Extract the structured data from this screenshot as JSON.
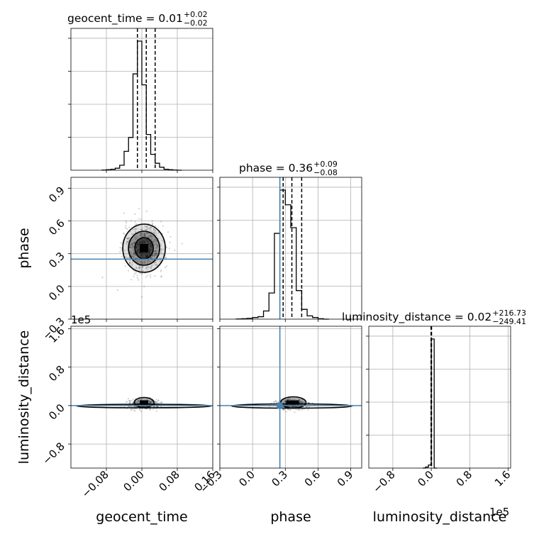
{
  "chart_data": {
    "type": "corner",
    "parameters": [
      "geocent_time",
      "phase",
      "luminosity_distance"
    ],
    "axis_labels": [
      "geocent_time",
      "phase",
      "luminosity_distance"
    ],
    "titles": [
      {
        "name": "geocent_time",
        "main": "geocent_time = 0.01",
        "plus": "+0.02",
        "minus": "−0.02"
      },
      {
        "name": "phase",
        "main": "phase = 0.36",
        "plus": "+0.09",
        "minus": "−0.08"
      },
      {
        "name": "luminosity_distance",
        "main": "luminosity_distance = 0.02",
        "plus": "+216.73",
        "minus": "−249.41"
      }
    ],
    "ranges": [
      [
        -0.16,
        0.16
      ],
      [
        -0.3,
        1.0
      ],
      [
        -1.3,
        1.65
      ]
    ],
    "offset_texts": [
      "1e5",
      "1e5"
    ],
    "ticks": {
      "geocent_time": {
        "values": [
          -0.08,
          0.0,
          0.08,
          0.16
        ],
        "labels": [
          "−0.08",
          "0.00",
          "0.08",
          "0.16"
        ]
      },
      "phase": {
        "values": [
          -0.3,
          0.0,
          0.3,
          0.6,
          0.9
        ],
        "labels": [
          "−0.3",
          "0.0",
          "0.3",
          "0.6",
          "0.9"
        ]
      },
      "luminosity_distance": {
        "values": [
          -0.8,
          0.0,
          0.8,
          1.6
        ],
        "labels": [
          "−0.8",
          "0.0",
          "0.8",
          "1.6"
        ]
      }
    },
    "truths": {
      "phase": 0.25,
      "luminosity_distance": 0.0
    },
    "medians": {
      "geocent_time": 0.01,
      "phase": 0.36,
      "luminosity_distance": 0.0
    },
    "quantiles": {
      "geocent_time": [
        -0.01,
        0.01,
        0.03
      ],
      "phase": [
        0.28,
        0.36,
        0.45
      ],
      "luminosity_distance": [
        -0.005,
        0.0,
        0.005
      ]
    },
    "histograms": {
      "geocent_time": {
        "edges": [
          -0.09,
          -0.08,
          -0.07,
          -0.06,
          -0.05,
          -0.04,
          -0.03,
          -0.02,
          -0.01,
          0.0,
          0.01,
          0.02,
          0.03,
          0.04,
          0.05,
          0.06,
          0.07,
          0.08,
          0.09
        ],
        "counts": [
          0.2,
          0.5,
          1,
          2,
          5,
          19,
          33,
          97,
          130,
          86,
          36,
          16,
          7,
          3,
          1,
          0.5,
          0.2,
          0
        ]
      },
      "phase": {
        "edges": [
          -0.15,
          -0.1,
          -0.05,
          0.0,
          0.05,
          0.1,
          0.15,
          0.2,
          0.25,
          0.3,
          0.35,
          0.4,
          0.45,
          0.5,
          0.55,
          0.6,
          0.65,
          0.7
        ],
        "counts": [
          0.2,
          0.5,
          1,
          2,
          3,
          10,
          32,
          105,
          158,
          140,
          112,
          35,
          12,
          4,
          2,
          0.5,
          0
        ]
      },
      "luminosity_distance": {
        "edges": [
          -0.18,
          -0.12,
          -0.06,
          0.0,
          0.06,
          0.12
        ],
        "counts": [
          0,
          1,
          3,
          125,
          0
        ]
      }
    },
    "grid": true
  }
}
